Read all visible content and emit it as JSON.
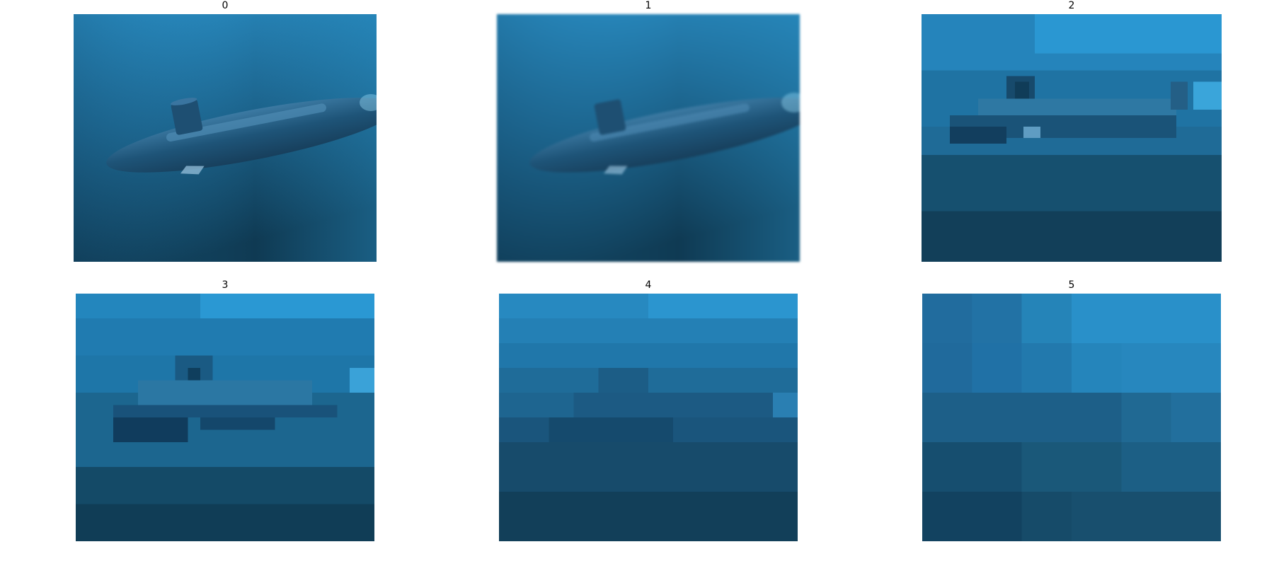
{
  "figure": {
    "panels": [
      {
        "title": "0",
        "description_icon": "submarine-underwater-photo",
        "pixelation": 0
      },
      {
        "title": "1",
        "description_icon": "submarine-underwater-photo-blurred",
        "pixelation": 1
      },
      {
        "title": "2",
        "description_icon": "submarine-underwater-photo-pixelated",
        "pixelation": 2
      },
      {
        "title": "3",
        "description_icon": "submarine-underwater-photo-pixelated",
        "pixelation": 3
      },
      {
        "title": "4",
        "description_icon": "submarine-underwater-photo-pixelated",
        "pixelation": 4
      },
      {
        "title": "5",
        "description_icon": "submarine-underwater-photo-pixelated",
        "pixelation": 5
      }
    ],
    "colors": {
      "water_top": "#2b9bd6",
      "water_mid": "#1f6f9c",
      "water_bottom": "#0f3d57",
      "hull": "#1d4e70",
      "hull_highlight": "#4a86ad"
    }
  }
}
